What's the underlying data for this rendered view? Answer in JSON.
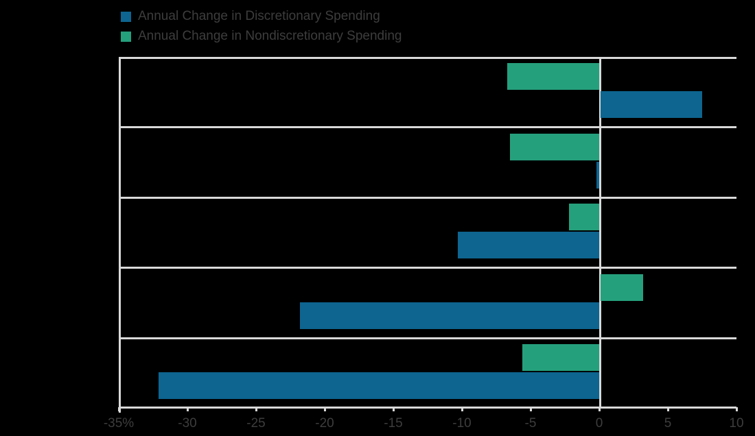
{
  "legend": {
    "items": [
      {
        "series": "discretionary",
        "label": "Annual Change in Discretionary Spending",
        "color": "#0d6590"
      },
      {
        "series": "nondiscretionary",
        "label": "Annual Change in Nondiscretionary Spending",
        "color": "#25a07d"
      }
    ]
  },
  "chart_data": {
    "type": "bar",
    "orientation": "horizontal",
    "title": "",
    "xlabel": "",
    "ylabel": "",
    "categories": [
      "",
      "",
      "",
      "",
      ""
    ],
    "series": [
      {
        "name": "Annual Change in Discretionary Spending",
        "color": "#0d6590",
        "values": [
          7.4,
          -0.2,
          -10.3,
          -21.8,
          -32.1
        ]
      },
      {
        "name": "Annual Change in Nondiscretionary Spending",
        "color": "#25a07d",
        "values": [
          -6.7,
          -6.5,
          -2.2,
          3.1,
          -5.6
        ]
      }
    ],
    "xlim": [
      -35,
      10
    ],
    "x_tick_values": [
      -35,
      -30,
      -25,
      -20,
      -15,
      -10,
      -5,
      0,
      5,
      10
    ],
    "x_ticks": [
      "-35%",
      "-30",
      "-25",
      "-20",
      "-15",
      "-10",
      "-5",
      "0",
      "5",
      "10"
    ],
    "grid": "horizontal-row-separators",
    "legend_position": "top-left",
    "units": "percent"
  },
  "colors": {
    "background": "#000000",
    "frame": "#d9d9d9",
    "text": "#3d3d3d",
    "discretionary_bar": "#0d6590",
    "nondiscretionary_bar": "#25a07d"
  }
}
